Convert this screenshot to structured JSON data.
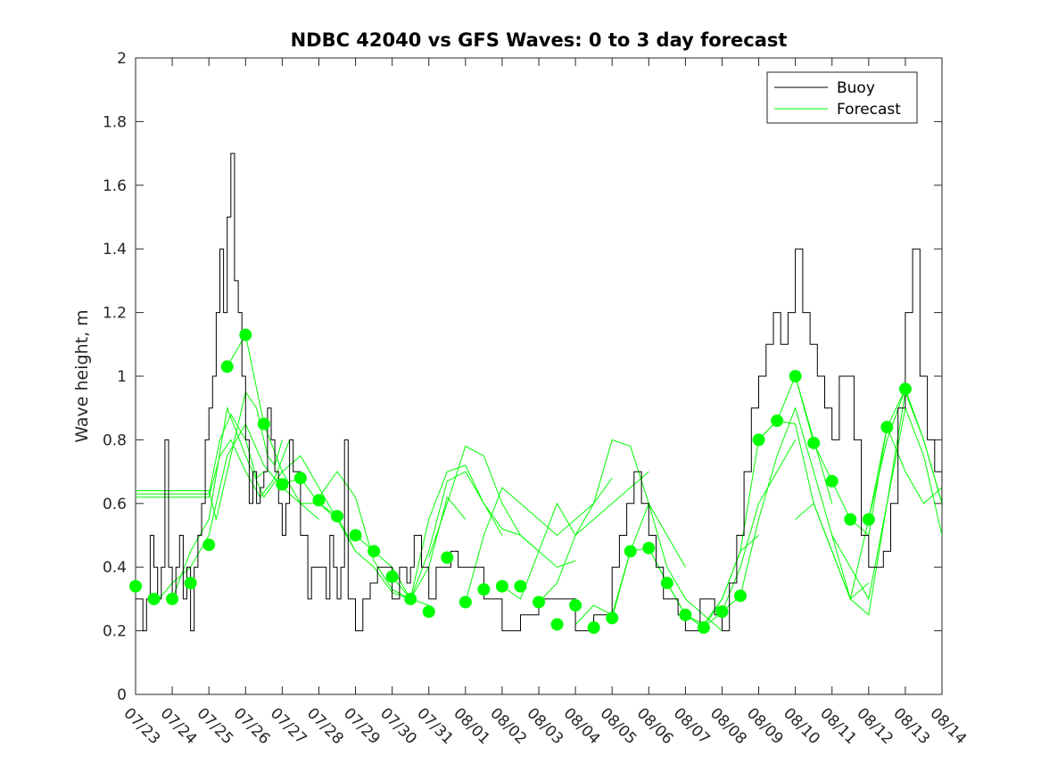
{
  "chart_data": {
    "type": "line",
    "title": "NDBC 42040 vs GFS Waves: 0 to 3 day forecast",
    "ylabel": "Wave height, m",
    "xlabel": "",
    "ylim": [
      0,
      2
    ],
    "xlim": [
      0,
      22
    ],
    "yticks": [
      0,
      0.2,
      0.4,
      0.6,
      0.8,
      1,
      1.2,
      1.4,
      1.6,
      1.8,
      2
    ],
    "ytick_labels": [
      "0",
      "0.2",
      "0.4",
      "0.6",
      "0.8",
      "1",
      "1.2",
      "1.4",
      "1.6",
      "1.8",
      "2"
    ],
    "xtick_labels": [
      "07/23",
      "07/24",
      "07/25",
      "07/26",
      "07/27",
      "07/28",
      "07/29",
      "07/30",
      "07/31",
      "08/01",
      "08/02",
      "08/03",
      "08/04",
      "08/05",
      "08/06",
      "08/07",
      "08/08",
      "08/09",
      "08/10",
      "08/11",
      "08/12",
      "08/13",
      "08/14"
    ],
    "grid": false,
    "legend_position": "top-right",
    "legend": [
      "Buoy",
      "Forecast"
    ],
    "colors": {
      "buoy": "#000000",
      "forecast": "#00ff00",
      "axis": "#262626"
    },
    "buoy": {
      "name": "Buoy",
      "x": [
        0,
        0.2,
        0.3,
        0.4,
        0.5,
        0.6,
        0.7,
        0.8,
        0.9,
        1.0,
        1.1,
        1.2,
        1.3,
        1.4,
        1.5,
        1.6,
        1.7,
        1.8,
        1.9,
        2.0,
        2.1,
        2.2,
        2.3,
        2.4,
        2.5,
        2.6,
        2.7,
        2.8,
        2.9,
        3.0,
        3.1,
        3.2,
        3.3,
        3.4,
        3.5,
        3.6,
        3.7,
        3.8,
        3.9,
        4.0,
        4.1,
        4.2,
        4.3,
        4.5,
        4.7,
        4.8,
        5.0,
        5.2,
        5.3,
        5.4,
        5.5,
        5.6,
        5.7,
        5.8,
        6.0,
        6.2,
        6.4,
        6.6,
        6.8,
        7.0,
        7.2,
        7.4,
        7.5,
        7.6,
        7.8,
        8.0,
        8.2,
        8.4,
        8.6,
        8.8,
        9.0,
        9.5,
        10.0,
        10.5,
        11.0,
        11.5,
        12.0,
        12.5,
        13.0,
        13.2,
        13.4,
        13.6,
        13.8,
        14.0,
        14.2,
        14.4,
        14.6,
        14.8,
        15.0,
        15.2,
        15.4,
        15.6,
        15.8,
        16.0,
        16.2,
        16.4,
        16.6,
        16.8,
        17.0,
        17.2,
        17.4,
        17.6,
        17.8,
        18.0,
        18.2,
        18.4,
        18.6,
        18.8,
        19.0,
        19.2,
        19.4,
        19.6,
        19.8,
        20.0,
        20.2,
        20.4,
        20.6,
        20.8,
        21.0,
        21.2,
        21.4,
        21.6,
        21.8,
        22.0
      ],
      "values": [
        0.3,
        0.2,
        0.3,
        0.5,
        0.4,
        0.3,
        0.4,
        0.8,
        0.4,
        0.3,
        0.4,
        0.5,
        0.3,
        0.4,
        0.2,
        0.4,
        0.5,
        0.6,
        0.8,
        0.9,
        1.0,
        1.2,
        1.4,
        1.2,
        1.5,
        1.7,
        1.3,
        1.2,
        1.0,
        0.8,
        0.6,
        0.7,
        0.6,
        0.65,
        0.7,
        0.9,
        0.8,
        0.7,
        0.6,
        0.5,
        0.6,
        0.8,
        0.7,
        0.5,
        0.3,
        0.4,
        0.4,
        0.3,
        0.5,
        0.4,
        0.3,
        0.4,
        0.8,
        0.3,
        0.2,
        0.3,
        0.35,
        0.4,
        0.4,
        0.3,
        0.4,
        0.35,
        0.4,
        0.5,
        0.4,
        0.3,
        0.4,
        0.4,
        0.45,
        0.4,
        0.4,
        0.3,
        0.2,
        0.25,
        0.3,
        0.3,
        0.2,
        0.25,
        0.4,
        0.5,
        0.6,
        0.7,
        0.6,
        0.5,
        0.4,
        0.3,
        0.3,
        0.25,
        0.2,
        0.2,
        0.3,
        0.3,
        0.25,
        0.2,
        0.35,
        0.5,
        0.7,
        0.9,
        1.0,
        1.1,
        1.2,
        1.1,
        1.2,
        1.4,
        1.2,
        1.1,
        1.0,
        0.9,
        0.8,
        1.0,
        1.0,
        0.8,
        0.5,
        0.4,
        0.4,
        0.45,
        0.6,
        0.9,
        1.2,
        1.4,
        1.0,
        0.8,
        0.7,
        0.6
      ]
    },
    "forecast_runs": [
      {
        "x": [
          0,
          2.0,
          2.2,
          2.5,
          2.8,
          3.0,
          3.3,
          3.6,
          3.8,
          4.0
        ],
        "values": [
          0.64,
          0.64,
          0.55,
          0.7,
          0.85,
          0.95,
          0.9,
          0.75,
          0.72,
          0.8
        ]
      },
      {
        "x": [
          0,
          2.0,
          2.3,
          2.6,
          3.0,
          3.3,
          3.5
        ],
        "values": [
          0.63,
          0.63,
          0.8,
          0.88,
          0.8,
          0.68,
          0.7
        ]
      },
      {
        "x": [
          0,
          2.0,
          2.3,
          2.6,
          3.0,
          3.4,
          3.8,
          4.2
        ],
        "values": [
          0.62,
          0.62,
          0.75,
          0.8,
          0.7,
          0.62,
          0.68,
          0.8
        ]
      },
      {
        "x": [
          0.5,
          1.0,
          1.5,
          2.0,
          2.5,
          3.0,
          3.5,
          4.0,
          4.5,
          5.0
        ],
        "values": [
          0.28,
          0.35,
          0.4,
          0.5,
          0.75,
          0.85,
          0.72,
          0.65,
          0.6,
          0.55
        ]
      },
      {
        "x": [
          1.0,
          1.5,
          2.0,
          2.5,
          3.0,
          3.5,
          4.0,
          4.5,
          5.0,
          5.5
        ],
        "values": [
          0.3,
          0.45,
          0.55,
          0.9,
          0.75,
          0.62,
          0.7,
          0.75,
          0.65,
          0.55
        ]
      },
      {
        "x": [
          2.5,
          3.0,
          3.5,
          4.0,
          4.5,
          5.0,
          5.5,
          6.0
        ],
        "values": [
          1.03,
          1.13,
          0.85,
          0.7,
          0.6,
          0.6,
          0.55,
          0.45
        ]
      },
      {
        "x": [
          4.0,
          4.5,
          5.0,
          5.5,
          6.0,
          6.5,
          7.0,
          7.5,
          8.0
        ],
        "values": [
          0.66,
          0.68,
          0.6,
          0.56,
          0.45,
          0.4,
          0.32,
          0.3,
          0.28
        ]
      },
      {
        "x": [
          5.0,
          5.5,
          6.0,
          6.5,
          7.0,
          7.5,
          8.0,
          8.5,
          9.0
        ],
        "values": [
          0.62,
          0.7,
          0.62,
          0.42,
          0.33,
          0.3,
          0.4,
          0.62,
          0.55
        ]
      },
      {
        "x": [
          6.0,
          6.5,
          7.0,
          7.5,
          8.0,
          8.5,
          9.0,
          9.5,
          10.0
        ],
        "values": [
          0.5,
          0.45,
          0.4,
          0.3,
          0.55,
          0.7,
          0.72,
          0.6,
          0.5
        ]
      },
      {
        "x": [
          7.0,
          7.5,
          8.0,
          8.5,
          9.0,
          9.5,
          10.0,
          10.5,
          11.0
        ],
        "values": [
          0.37,
          0.3,
          0.45,
          0.67,
          0.7,
          0.6,
          0.52,
          0.5,
          0.45
        ]
      },
      {
        "x": [
          8.0,
          8.5,
          9.0,
          9.5,
          10.0,
          10.5,
          11.0,
          11.5,
          12.0
        ],
        "values": [
          0.43,
          0.6,
          0.78,
          0.75,
          0.6,
          0.5,
          0.45,
          0.4,
          0.42
        ]
      },
      {
        "x": [
          9.0,
          9.5,
          10.0,
          10.5,
          11.0,
          11.5,
          12.0,
          12.5,
          13.0
        ],
        "values": [
          0.29,
          0.5,
          0.65,
          0.6,
          0.55,
          0.5,
          0.55,
          0.6,
          0.68
        ]
      },
      {
        "x": [
          10.0,
          10.5,
          11.0,
          11.5,
          12.0,
          12.5,
          13.0,
          13.5,
          14.0
        ],
        "values": [
          0.34,
          0.3,
          0.45,
          0.6,
          0.5,
          0.55,
          0.6,
          0.65,
          0.7
        ]
      },
      {
        "x": [
          11.0,
          11.5,
          12.0,
          12.5,
          13.0,
          13.5,
          14.0,
          14.5,
          15.0
        ],
        "values": [
          0.29,
          0.35,
          0.5,
          0.6,
          0.8,
          0.78,
          0.6,
          0.5,
          0.4
        ]
      },
      {
        "x": [
          12.0,
          12.5,
          13.0,
          13.5,
          14.0,
          14.5,
          15.0,
          15.5,
          16.0
        ],
        "values": [
          0.22,
          0.28,
          0.25,
          0.45,
          0.6,
          0.4,
          0.3,
          0.25,
          0.2
        ]
      },
      {
        "x": [
          13.0,
          13.5,
          14.0,
          14.5,
          15.0,
          15.5,
          16.0,
          16.5,
          17.0
        ],
        "values": [
          0.24,
          0.45,
          0.46,
          0.35,
          0.25,
          0.22,
          0.3,
          0.45,
          0.5
        ]
      },
      {
        "x": [
          14.0,
          14.5,
          15.0,
          15.5,
          16.0,
          16.5,
          17.0,
          17.5,
          18.0
        ],
        "values": [
          0.46,
          0.35,
          0.25,
          0.21,
          0.26,
          0.4,
          0.6,
          0.7,
          0.8
        ]
      },
      {
        "x": [
          15.0,
          15.5,
          16.0,
          16.5,
          17.0,
          17.5,
          18.0,
          18.5,
          19.0
        ],
        "values": [
          0.25,
          0.21,
          0.3,
          0.45,
          0.8,
          0.86,
          1.0,
          0.8,
          0.6
        ]
      },
      {
        "x": [
          16.0,
          16.5,
          17.0,
          17.5,
          18.0,
          18.5,
          19.0,
          19.5,
          20.0
        ],
        "values": [
          0.26,
          0.31,
          0.55,
          0.75,
          0.9,
          0.7,
          0.5,
          0.3,
          0.35
        ]
      },
      {
        "x": [
          17.0,
          17.5,
          18.0,
          18.5,
          19.0,
          19.5,
          20.0,
          20.5,
          21.0
        ],
        "values": [
          0.8,
          0.86,
          0.85,
          0.6,
          0.45,
          0.3,
          0.55,
          0.8,
          0.96
        ]
      },
      {
        "x": [
          18.0,
          18.5,
          19.0,
          19.5,
          20.0,
          20.5,
          21.0,
          21.5,
          22.0
        ],
        "values": [
          1.0,
          0.79,
          0.67,
          0.55,
          0.5,
          0.84,
          0.96,
          0.8,
          0.6
        ]
      },
      {
        "x": [
          18.0,
          18.5,
          19.0,
          19.5,
          20.0,
          20.5,
          21.0,
          21.5,
          22.0
        ],
        "values": [
          0.55,
          0.6,
          0.45,
          0.3,
          0.25,
          0.6,
          0.9,
          0.75,
          0.5
        ]
      },
      {
        "x": [
          19.0,
          19.5,
          20.0,
          20.5,
          21.0,
          21.5,
          22.0
        ],
        "values": [
          0.5,
          0.4,
          0.3,
          0.6,
          0.95,
          0.8,
          0.6
        ]
      },
      {
        "x": [
          20.0,
          20.5,
          21.0,
          21.5,
          22.0
        ],
        "values": [
          0.55,
          0.84,
          0.7,
          0.6,
          0.65
        ]
      }
    ],
    "forecast_points": {
      "name": "Forecast",
      "x": [
        0,
        0.5,
        1.0,
        1.5,
        2.0,
        2.5,
        3.0,
        3.5,
        4.0,
        4.5,
        5.0,
        5.5,
        6.0,
        6.5,
        7.0,
        7.5,
        8.0,
        8.5,
        9.0,
        9.5,
        10.0,
        10.5,
        11.0,
        11.5,
        12.0,
        12.5,
        13.0,
        13.5,
        14.0,
        14.5,
        15.0,
        15.5,
        16.0,
        16.5,
        17.0,
        17.5,
        18.0,
        18.5,
        19.0,
        19.5,
        20.0,
        20.5,
        21.0
      ],
      "values": [
        0.34,
        0.3,
        0.3,
        0.35,
        0.47,
        1.03,
        1.13,
        0.85,
        0.66,
        0.68,
        0.61,
        0.56,
        0.5,
        0.45,
        0.37,
        0.3,
        0.26,
        0.43,
        0.29,
        0.33,
        0.34,
        0.34,
        0.29,
        0.22,
        0.28,
        0.21,
        0.24,
        0.45,
        0.46,
        0.35,
        0.25,
        0.21,
        0.26,
        0.31,
        0.8,
        0.86,
        1.0,
        0.79,
        0.67,
        0.55,
        0.55,
        0.84,
        0.96
      ]
    }
  }
}
